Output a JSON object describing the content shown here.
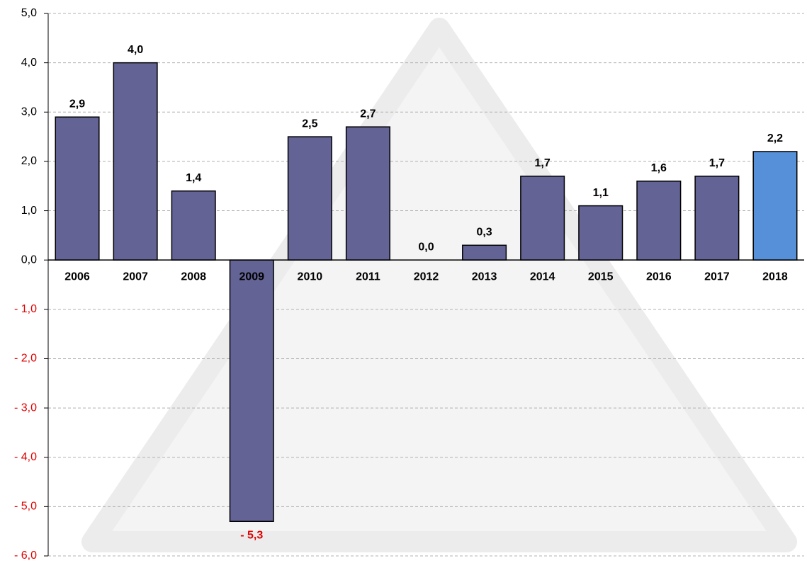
{
  "chart_data": {
    "type": "bar",
    "categories": [
      "2006",
      "2007",
      "2008",
      "2009",
      "2010",
      "2011",
      "2012",
      "2013",
      "2014",
      "2015",
      "2016",
      "2017",
      "2018"
    ],
    "values": [
      2.9,
      4.0,
      1.4,
      -5.3,
      2.5,
      2.7,
      0.0,
      0.3,
      1.7,
      1.1,
      1.6,
      1.7,
      2.2
    ],
    "value_labels": [
      "2,9",
      "4,0",
      "1,4",
      "- 5,3",
      "2,5",
      "2,7",
      "0,0",
      "0,3",
      "1,7",
      "1,1",
      "1,6",
      "1,7",
      "2,2"
    ],
    "colors": [
      "#636396",
      "#636396",
      "#636396",
      "#636396",
      "#636396",
      "#636396",
      "#636396",
      "#636396",
      "#636396",
      "#636396",
      "#636396",
      "#636396",
      "#5590d8"
    ],
    "negative_color": "#e00000",
    "ylim": [
      -6,
      5
    ],
    "yticks": [
      {
        "value": -6,
        "label": "- 6,0"
      },
      {
        "value": -5,
        "label": "- 5,0"
      },
      {
        "value": -4,
        "label": "- 4,0"
      },
      {
        "value": -3,
        "label": "- 3,0"
      },
      {
        "value": -2,
        "label": "- 2,0"
      },
      {
        "value": -1,
        "label": "- 1,0"
      },
      {
        "value": 0,
        "label": "0,0"
      },
      {
        "value": 1,
        "label": "1,0"
      },
      {
        "value": 2,
        "label": "2,0"
      },
      {
        "value": 3,
        "label": "3,0"
      },
      {
        "value": 4,
        "label": "4,0"
      },
      {
        "value": 5,
        "label": "5,0"
      }
    ],
    "grid": true
  }
}
